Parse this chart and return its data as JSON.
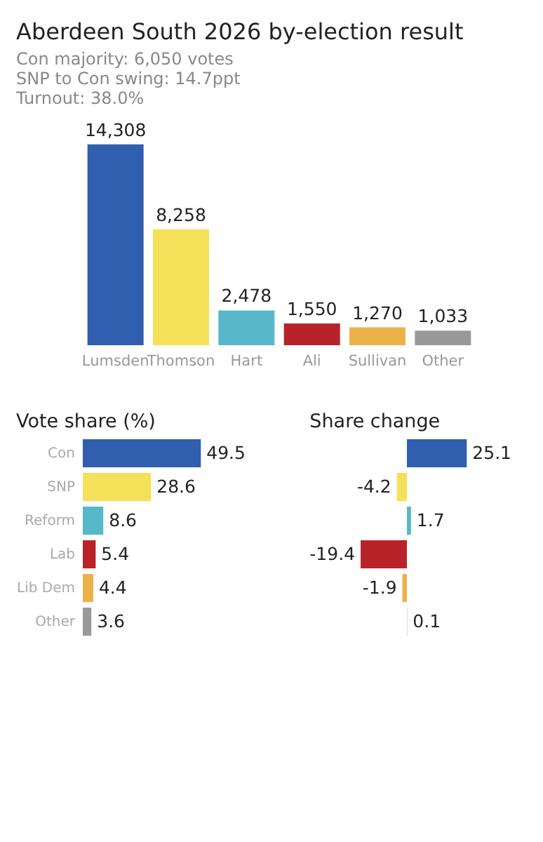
{
  "chart_data": [
    {
      "type": "bar",
      "title": "Aberdeen South 2026 by-election result",
      "subtitle": "Con majority: 6,050 votes\nSNP to Con swing: 14.7ppt\nTurnout: 38.0%",
      "categories": [
        "Lumsden",
        "Thomson",
        "Hart",
        "Ali",
        "Sullivan",
        "Other"
      ],
      "values": [
        14308,
        8258,
        2478,
        1550,
        1270,
        1033
      ],
      "colors": [
        "#2f5fae",
        "#f5e05a",
        "#56b8c9",
        "#b8232a",
        "#ecb24a",
        "#999999"
      ],
      "value_labels": [
        "14,308",
        "8,258",
        "2,478",
        "1,550",
        "1,270",
        "1,033"
      ]
    },
    {
      "type": "bar",
      "orientation": "horizontal",
      "title": "Vote share (%)",
      "categories": [
        "Con",
        "SNP",
        "Reform",
        "Lab",
        "Lib Dem",
        "Other"
      ],
      "values": [
        49.5,
        28.6,
        8.6,
        5.4,
        4.4,
        3.6
      ],
      "colors": [
        "#2f5fae",
        "#f5e05a",
        "#56b8c9",
        "#b8232a",
        "#ecb24a",
        "#999999"
      ],
      "value_labels": [
        "49.5",
        "28.6",
        "8.6",
        "5.4",
        "4.4",
        "3.6"
      ]
    },
    {
      "type": "bar",
      "orientation": "horizontal",
      "title": "Share change",
      "categories": [
        null,
        null,
        null,
        null,
        null,
        null
      ],
      "values": [
        25.1,
        -4.2,
        1.7,
        -19.4,
        -1.9,
        0.1
      ],
      "colors": [
        "#2f5fae",
        "#f5e05a",
        "#56b8c9",
        "#b8232a",
        "#ecb24a",
        "#999999"
      ],
      "value_labels": [
        "25.1",
        "-4.2",
        "1.7",
        "-19.4",
        "-1.9",
        "0.1"
      ]
    }
  ]
}
